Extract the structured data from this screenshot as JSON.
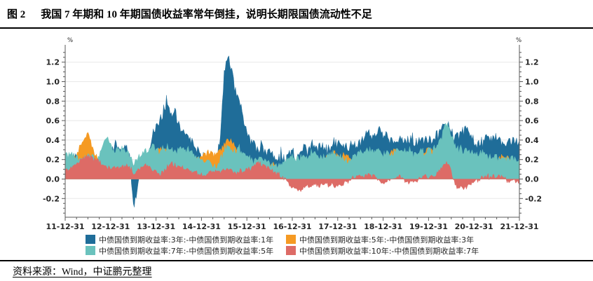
{
  "header": {
    "figure_label": "图 2",
    "title": "我国 7 年期和 10 年期国债收益率常年倒挂，说明长期限国债流动性不足"
  },
  "footer": {
    "source": "资料来源：Wind，中证鹏元整理"
  },
  "legend": {
    "items": [
      {
        "label": "中债国债到期收益率:3年:-中债国债到期收益率:1年",
        "color": "#1F6D99"
      },
      {
        "label": "中债国债到期收益率:5年:-中债国债到期收益率:3年",
        "color": "#F59A23"
      },
      {
        "label": "中债国债到期收益率:7年:-中债国债到期收益率:5年",
        "color": "#6AC2BD"
      },
      {
        "label": "中债国债到期收益率:10年:-中债国债到期收益率:7年",
        "color": "#DD6B66"
      }
    ]
  },
  "chart_data": {
    "type": "area",
    "title": "",
    "xlabel": "",
    "ylabel": "%",
    "unit_label": "%",
    "grid": true,
    "legend_position": "bottom",
    "ylim": [
      -0.39,
      1.35
    ],
    "y_ticks": [
      -0.2,
      0.0,
      0.2,
      0.4,
      0.6,
      0.8,
      1.0,
      1.2
    ],
    "x_tick_labels": [
      "11-12-31",
      "12-12-31",
      "13-12-31",
      "14-12-31",
      "15-12-31",
      "16-12-31",
      "17-12-31",
      "18-12-31",
      "19-12-31",
      "20-12-31",
      "21-12-31"
    ],
    "sampling": "monthly values (%), 2011-12-31 to 2021-12-31, 121 points per series",
    "series": [
      {
        "name": "中债国债到期收益率:3年:-中债国债到期收益率:1年",
        "color": "#1F6D99",
        "values": [
          0.22,
          0.2,
          0.22,
          0.22,
          0.2,
          0.18,
          0.15,
          0.18,
          0.15,
          0.18,
          0.3,
          0.35,
          0.32,
          0.32,
          0.35,
          0.3,
          0.32,
          0.25,
          -0.3,
          -0.1,
          0.1,
          0.15,
          0.25,
          0.45,
          0.55,
          0.6,
          0.7,
          0.81,
          0.65,
          0.7,
          0.55,
          0.45,
          0.5,
          0.4,
          0.35,
          0.3,
          0.25,
          0.15,
          0.2,
          0.15,
          0.2,
          0.45,
          1.05,
          1.3,
          1.1,
          0.9,
          0.85,
          0.6,
          0.5,
          0.4,
          0.35,
          0.3,
          0.32,
          0.28,
          0.3,
          0.25,
          0.22,
          0.25,
          0.2,
          0.25,
          0.3,
          0.2,
          0.25,
          0.3,
          0.28,
          0.35,
          0.3,
          0.32,
          0.35,
          0.32,
          0.35,
          0.4,
          0.35,
          0.38,
          0.35,
          0.3,
          0.4,
          0.35,
          0.38,
          0.45,
          0.5,
          0.45,
          0.48,
          0.5,
          0.45,
          0.45,
          0.4,
          0.38,
          0.45,
          0.42,
          0.4,
          0.42,
          0.38,
          0.4,
          0.42,
          0.4,
          0.42,
          0.4,
          0.45,
          0.5,
          0.55,
          0.58,
          0.5,
          0.42,
          0.45,
          0.5,
          0.5,
          0.45,
          0.4,
          0.35,
          0.4,
          0.42,
          0.4,
          0.42,
          0.4,
          0.38,
          0.35,
          0.38,
          0.4,
          0.38,
          0.4
        ]
      },
      {
        "name": "中债国债到期收益率:5年:-中债国债到期收益率:3年",
        "color": "#F59A23",
        "values": [
          0.15,
          0.18,
          0.2,
          0.25,
          0.35,
          0.42,
          0.46,
          0.35,
          0.25,
          0.2,
          0.18,
          0.15,
          0.12,
          0.12,
          0.15,
          0.12,
          0.15,
          0.12,
          0.05,
          0.1,
          0.12,
          0.15,
          0.18,
          0.25,
          0.3,
          0.32,
          0.33,
          0.3,
          0.25,
          0.22,
          0.2,
          0.18,
          0.15,
          0.15,
          0.18,
          0.2,
          0.22,
          0.25,
          0.28,
          0.25,
          0.28,
          0.3,
          0.35,
          0.42,
          0.38,
          0.33,
          0.3,
          0.25,
          0.2,
          0.15,
          0.12,
          0.15,
          0.18,
          0.15,
          0.12,
          0.15,
          0.12,
          0.1,
          0.12,
          0.15,
          0.18,
          0.12,
          0.1,
          0.12,
          0.15,
          0.18,
          0.15,
          0.18,
          0.2,
          0.22,
          0.25,
          0.27,
          0.25,
          0.22,
          0.25,
          0.22,
          0.2,
          0.18,
          0.15,
          0.18,
          0.15,
          0.12,
          0.15,
          0.18,
          0.22,
          0.25,
          0.28,
          0.3,
          0.28,
          0.25,
          0.2,
          0.18,
          0.15,
          0.18,
          0.25,
          0.28,
          0.3,
          0.28,
          0.3,
          0.33,
          0.35,
          0.32,
          0.25,
          0.2,
          0.22,
          0.2,
          0.22,
          0.2,
          0.18,
          0.15,
          0.18,
          0.15,
          0.12,
          0.15,
          0.18,
          0.22,
          0.24,
          0.22,
          0.18,
          0.15,
          0.12
        ]
      },
      {
        "name": "中债国债到期收益率:7年:-中债国债到期收益率:5年",
        "color": "#6AC2BD",
        "values": [
          0.25,
          0.24,
          0.25,
          0.22,
          0.2,
          0.22,
          0.25,
          0.22,
          0.2,
          0.25,
          0.38,
          0.42,
          0.35,
          0.3,
          0.32,
          0.28,
          0.3,
          0.25,
          0.15,
          0.2,
          0.25,
          0.28,
          0.3,
          0.35,
          0.3,
          0.28,
          0.3,
          0.32,
          0.3,
          0.28,
          0.3,
          0.32,
          0.3,
          0.28,
          0.25,
          0.22,
          0.2,
          0.15,
          0.18,
          0.15,
          0.12,
          0.2,
          0.3,
          0.35,
          0.3,
          0.28,
          0.3,
          0.28,
          0.25,
          0.2,
          0.18,
          0.2,
          0.22,
          0.2,
          0.18,
          0.15,
          0.12,
          0.15,
          0.18,
          0.22,
          0.25,
          0.2,
          0.22,
          0.25,
          0.22,
          0.28,
          0.25,
          0.22,
          0.25,
          0.22,
          0.25,
          0.28,
          0.25,
          0.22,
          0.2,
          0.18,
          0.22,
          0.25,
          0.28,
          0.3,
          0.32,
          0.28,
          0.3,
          0.28,
          0.25,
          0.28,
          0.25,
          0.28,
          0.3,
          0.28,
          0.3,
          0.28,
          0.25,
          0.28,
          0.3,
          0.28,
          0.3,
          0.28,
          0.32,
          0.4,
          0.52,
          0.58,
          0.45,
          0.35,
          0.3,
          0.28,
          0.3,
          0.28,
          0.25,
          0.25,
          0.28,
          0.25,
          0.22,
          0.25,
          0.22,
          0.2,
          0.22,
          0.2,
          0.22,
          0.2,
          0.22
        ]
      },
      {
        "name": "中债国债到期收益率:10年:-中债国债到期收益率:7年",
        "color": "#DD6B66",
        "values": [
          0.12,
          0.1,
          0.12,
          0.15,
          0.2,
          0.22,
          0.24,
          0.22,
          0.2,
          0.18,
          0.15,
          0.12,
          0.12,
          0.12,
          0.12,
          0.12,
          0.14,
          0.12,
          0.05,
          0.08,
          0.12,
          0.15,
          0.12,
          0.1,
          0.08,
          0.05,
          0.08,
          0.12,
          0.15,
          0.15,
          0.12,
          0.12,
          0.1,
          0.08,
          0.08,
          0.05,
          0.05,
          0.05,
          0.08,
          0.06,
          0.08,
          0.08,
          0.1,
          0.1,
          0.08,
          0.06,
          0.08,
          0.08,
          0.1,
          0.12,
          0.15,
          0.18,
          0.15,
          0.12,
          0.1,
          0.08,
          0.05,
          0.03,
          0.0,
          -0.05,
          -0.08,
          -0.1,
          -0.13,
          -0.08,
          -0.06,
          -0.08,
          -0.06,
          -0.08,
          -0.06,
          -0.05,
          -0.06,
          -0.08,
          -0.06,
          -0.05,
          -0.04,
          -0.02,
          0.02,
          0.03,
          0.02,
          0.03,
          0.05,
          0.03,
          0.02,
          -0.02,
          -0.03,
          -0.03,
          -0.02,
          0.02,
          0.03,
          0.02,
          -0.03,
          -0.04,
          -0.03,
          -0.02,
          0.02,
          0.03,
          0.02,
          0.02,
          0.05,
          0.1,
          0.15,
          0.17,
          0.08,
          -0.05,
          -0.08,
          -0.1,
          -0.08,
          -0.05,
          -0.03,
          -0.02,
          0.02,
          0.03,
          0.02,
          0.03,
          0.02,
          0.03,
          0.02,
          -0.02,
          -0.03,
          -0.02,
          -0.04
        ]
      }
    ],
    "colors": {
      "axis": "#595959",
      "grid": "#E8E8E8",
      "tick_label": "#262626"
    }
  }
}
